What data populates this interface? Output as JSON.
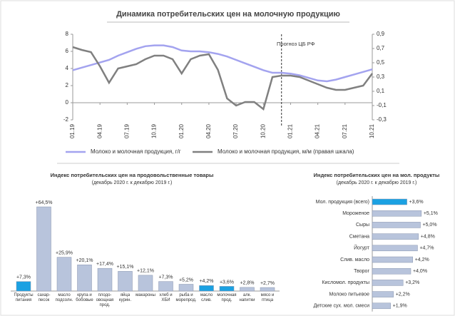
{
  "chart_data": [
    {
      "type": "line",
      "title": "Динамика потребительских цен на молочную продукцию",
      "annotation": "Прогноз ЦБ РФ",
      "categories": [
        "01.19",
        null,
        null,
        "04.19",
        null,
        null,
        "07.19",
        null,
        null,
        "10.19",
        null,
        null,
        "01.20",
        null,
        null,
        "04.20",
        null,
        null,
        "07.20",
        null,
        null,
        "10.20",
        null,
        null,
        "01.21",
        null,
        null,
        "04.21",
        null,
        null,
        "07.21",
        null,
        null,
        "10.21"
      ],
      "ylim": [
        -2,
        8
      ],
      "yticks": [
        -2,
        0,
        2,
        4,
        6,
        8
      ],
      "y2lim": [
        -0.3,
        0.9
      ],
      "y2ticks": [
        {
          "value": -0.3,
          "label": "-0,3"
        },
        {
          "value": -0.1,
          "label": "-0,1"
        },
        {
          "value": 0.1,
          "label": "0,1"
        },
        {
          "value": 0.3,
          "label": "0,3"
        },
        {
          "value": 0.5,
          "label": "0,5"
        },
        {
          "value": 0.7,
          "label": "0,7"
        },
        {
          "value": 0.9,
          "label": "0,9"
        }
      ],
      "grid": false,
      "series": [
        {
          "name": "Молоко и молочная продукция, г/г",
          "color": "#a3a3ef",
          "values": [
            3.8,
            4.1,
            4.4,
            4.7,
            5.0,
            5.5,
            5.9,
            6.3,
            6.6,
            6.7,
            6.7,
            6.5,
            6.1,
            6.0,
            6.0,
            5.9,
            5.7,
            5.4,
            5.0,
            4.6,
            4.2,
            3.8,
            3.5,
            3.5,
            3.4,
            3.2,
            2.9,
            2.6,
            2.5,
            2.7,
            3.0,
            3.3,
            3.6,
            3.9
          ]
        },
        {
          "name": "Молоко и молочная продукция, м/м (правая шкала)",
          "color": "#808080",
          "axis": "y2",
          "values": [
            0.72,
            0.68,
            0.65,
            0.45,
            0.22,
            0.42,
            0.45,
            0.48,
            0.55,
            0.6,
            0.6,
            0.55,
            0.35,
            0.55,
            0.6,
            0.62,
            0.4,
            0.0,
            -0.1,
            -0.05,
            -0.05,
            -0.15,
            0.3,
            0.32,
            0.32,
            0.3,
            0.25,
            0.2,
            0.15,
            0.12,
            0.12,
            0.15,
            0.18,
            0.35
          ]
        }
      ]
    },
    {
      "type": "bar",
      "title": "Индекс потребительских цен на продовольственные товары",
      "subtitle": "(декабрь 2020 г. к декабрю 2019 г.)",
      "categories": [
        "Продукты питания",
        "сахар-песок",
        "масло подсолн.",
        "крупа и бобовые",
        "плодо-овощная прод.",
        "яйца курин.",
        "макароны",
        "хлеб и ХБИ",
        "рыба и морепрод.",
        "масло слив.",
        "молочная прод.",
        "алк. напитки",
        "мясо и птица"
      ],
      "values": [
        7.3,
        64.5,
        25.9,
        20.1,
        17.4,
        15.1,
        12.1,
        7.3,
        5.2,
        4.2,
        3.6,
        2.8,
        2.7
      ],
      "value_labels": [
        "+7,3%",
        "+64,5%",
        "+25,9%",
        "+20,1%",
        "+17,4%",
        "+15,1%",
        "+12,1%",
        "+7,3%",
        "+5,2%",
        "+4,2%",
        "+3,6%",
        "+2,8%",
        "+2,7%"
      ],
      "colors": [
        "#1ba1e2",
        "#b8c4dc",
        "#b8c4dc",
        "#b8c4dc",
        "#b8c4dc",
        "#b8c4dc",
        "#b8c4dc",
        "#b8c4dc",
        "#b8c4dc",
        "#1ba1e2",
        "#1ba1e2",
        "#b8c4dc",
        "#b8c4dc"
      ]
    },
    {
      "type": "hbar",
      "title": "Индекс потребительских цен на мол. продукты",
      "subtitle": "(декабрь 2020 г. к декабрю 2019 г.)",
      "categories": [
        "Мол. продукция (всего)",
        "Мороженое",
        "Сыры",
        "Сметана",
        "Йогурт",
        "Слив. масло",
        "Творог",
        "Кисломол. продукты",
        "Молоко питьевое",
        "Детские сух. мол. смеси"
      ],
      "values": [
        3.6,
        5.1,
        5.0,
        4.8,
        4.7,
        4.2,
        4.0,
        3.2,
        2.2,
        1.9
      ],
      "value_labels": [
        "+3,6%",
        "+5,1%",
        "+5,0%",
        "+4,8%",
        "+4,7%",
        "+4,2%",
        "+4,0%",
        "+3,2%",
        "+2,2%",
        "+1,9%"
      ],
      "colors": [
        "#1ba1e2",
        "#b8c4dc",
        "#b8c4dc",
        "#b8c4dc",
        "#b8c4dc",
        "#b8c4dc",
        "#b8c4dc",
        "#b8c4dc",
        "#b8c4dc",
        "#b8c4dc"
      ]
    }
  ]
}
